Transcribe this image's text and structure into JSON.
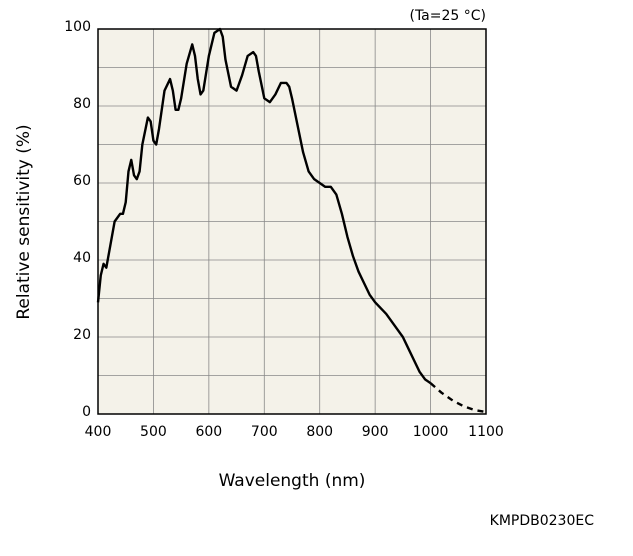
{
  "chart_data": {
    "type": "line",
    "annotation": "(Ta=25 °C)",
    "x_label": "Wavelength (nm)",
    "y_label": "Relative sensitivity (%)",
    "footer": "KMPDB0230EC",
    "xlim": [
      400,
      1100
    ],
    "xticks": [
      400,
      500,
      600,
      700,
      800,
      900,
      1000,
      1100
    ],
    "ylim": [
      0,
      100
    ],
    "yticks": [
      0,
      20,
      40,
      60,
      80,
      100
    ],
    "y_minor_grid": [
      10,
      30,
      50,
      70,
      90
    ],
    "grid": true,
    "background": "#f4f2e9",
    "series": [
      {
        "color": "#000000",
        "style": "solid",
        "x": [
          400,
          405,
          410,
          415,
          420,
          430,
          440,
          445,
          450,
          455,
          460,
          465,
          470,
          475,
          480,
          490,
          495,
          500,
          505,
          510,
          520,
          530,
          535,
          540,
          545,
          550,
          560,
          570,
          575,
          580,
          585,
          590,
          600,
          610,
          620,
          625,
          630,
          640,
          650,
          660,
          670,
          680,
          685,
          690,
          700,
          710,
          720,
          730,
          740,
          745,
          750,
          760,
          770,
          780,
          790,
          800,
          810,
          820,
          830,
          840,
          850,
          860,
          870,
          880,
          890,
          900,
          920,
          940,
          950,
          960,
          970,
          980,
          990,
          1000
        ],
        "values": [
          29,
          36,
          39,
          38,
          42,
          50,
          52,
          52,
          55,
          63,
          66,
          62,
          61,
          63,
          70,
          77,
          76,
          71,
          70,
          74,
          84,
          87,
          84,
          79,
          79,
          82,
          91,
          96,
          93,
          87,
          83,
          84,
          93,
          99,
          100,
          98,
          92,
          85,
          84,
          88,
          93,
          94,
          93,
          89,
          82,
          81,
          83,
          86,
          86,
          85,
          82,
          75,
          68,
          63,
          61,
          60,
          59,
          59,
          57,
          52,
          46,
          41,
          37,
          34,
          31,
          29,
          26,
          22,
          20,
          17,
          14,
          11,
          9,
          8
        ]
      },
      {
        "color": "#000000",
        "style": "dashed",
        "x": [
          1000,
          1020,
          1040,
          1060,
          1080,
          1100
        ],
        "values": [
          8,
          5.5,
          3.5,
          2,
          1,
          0.5
        ]
      }
    ]
  }
}
